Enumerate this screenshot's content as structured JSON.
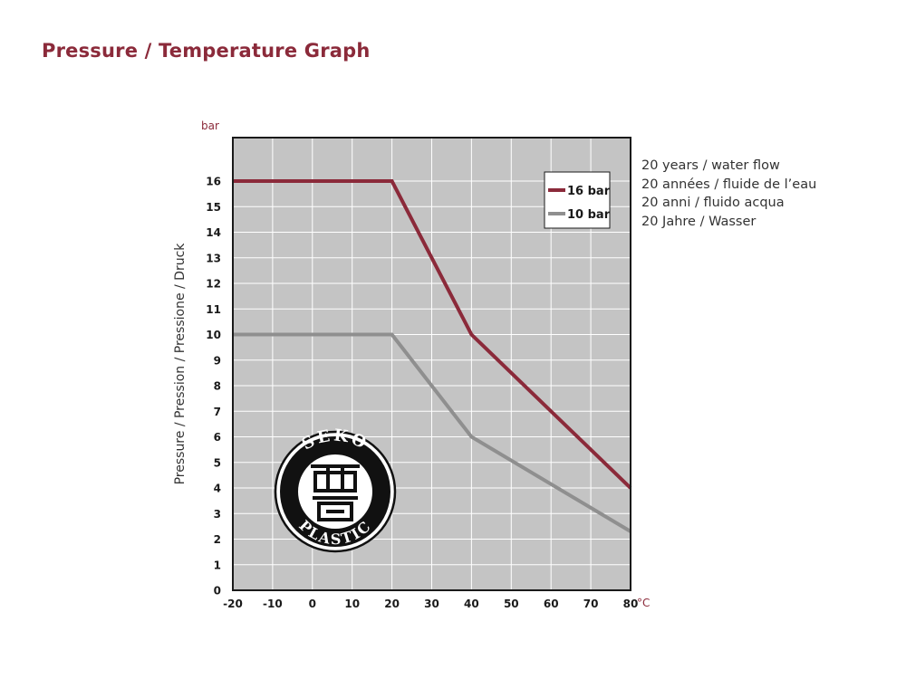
{
  "title": "Pressure / Temperature Graph",
  "notes": [
    "20 years / water flow",
    "20 années / fluide de l’eau",
    "20 anni / fluido acqua",
    "20 Jahre / Wasser"
  ],
  "logo": {
    "text_top": "SEKO",
    "text_bottom": "PLASTIC",
    "glyph": "西高"
  },
  "colors": {
    "accent": "#8b2a3a",
    "series_16": "#8b2a3a",
    "series_10": "#8f8f8f",
    "plot_bg": "#c4c4c4",
    "grid": "#ffffff"
  },
  "chart_data": {
    "type": "line",
    "title": "Pressure / Temperature Graph",
    "ylabel": "Pressure   / Pression / Pressione / Druck",
    "xlabel": "",
    "y_unit": "bar",
    "x_unit": "°C",
    "x_ticks": [
      "-20",
      "-10",
      "0",
      "10",
      "20",
      "30",
      "40",
      "50",
      "60",
      "70",
      "80"
    ],
    "y_ticks": [
      "0",
      "1",
      "2",
      "3",
      "4",
      "5",
      "6",
      "7",
      "8",
      "9",
      "10",
      "11",
      "12",
      "13",
      "14",
      "15",
      "16"
    ],
    "xlim": [
      -20,
      80
    ],
    "ylim": [
      0,
      17.7
    ],
    "grid": true,
    "legend_position": "top-right",
    "series": [
      {
        "name": "16 bar",
        "color": "#8b2a3a",
        "x": [
          -20,
          20,
          40,
          80
        ],
        "y": [
          16,
          16,
          10,
          4
        ]
      },
      {
        "name": "10 bar",
        "color": "#8f8f8f",
        "x": [
          -20,
          20,
          40,
          80
        ],
        "y": [
          10,
          10,
          6,
          2.3
        ]
      }
    ]
  }
}
